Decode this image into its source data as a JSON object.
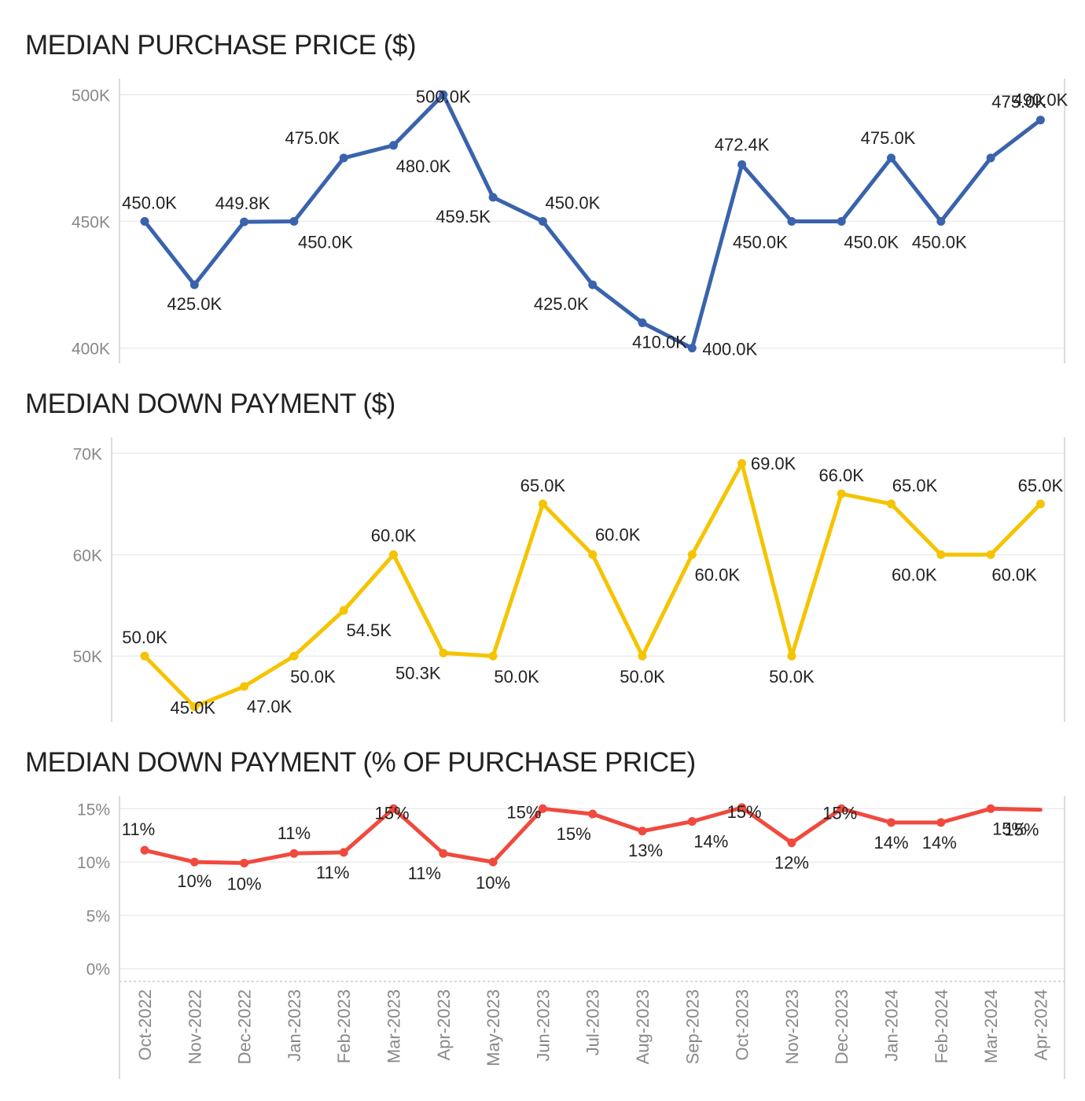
{
  "chart_data": [
    {
      "type": "line",
      "title": "MEDIAN PURCHASE PRICE ($)",
      "categories": [
        "Oct-2022",
        "Nov-2022",
        "Dec-2022",
        "Jan-2023",
        "Feb-2023",
        "Mar-2023",
        "Apr-2023",
        "May-2023",
        "Jun-2023",
        "Jul-2023",
        "Aug-2023",
        "Sep-2023",
        "Oct-2023",
        "Nov-2023",
        "Dec-2023",
        "Jan-2024",
        "Feb-2024",
        "Mar-2024",
        "Apr-2024"
      ],
      "values": [
        450.0,
        425.0,
        449.8,
        450.0,
        475.0,
        480.0,
        500.0,
        459.5,
        450.0,
        425.0,
        410.0,
        400.0,
        472.4,
        450.0,
        450.0,
        475.0,
        450.0,
        475.0,
        490.0
      ],
      "data_labels": [
        "450.0K",
        "425.0K",
        "449.8K",
        "450.0K",
        "475.0K",
        "480.0K",
        "500.0K",
        "459.5K",
        "450.0K",
        "425.0K",
        "410.0K",
        "400.0K",
        "472.4K",
        "450.0K",
        "450.0K",
        "475.0K",
        "450.0K",
        "475.0K",
        "490.0K"
      ],
      "yticks": [
        {
          "value": 400,
          "label": "400K"
        },
        {
          "value": 450,
          "label": "450K"
        },
        {
          "value": 500,
          "label": "500K"
        }
      ],
      "ylim": [
        394,
        506
      ],
      "grid": true,
      "color": "#3a63ad"
    },
    {
      "type": "line",
      "title": "MEDIAN DOWN PAYMENT ($)",
      "categories": [
        "Oct-2022",
        "Nov-2022",
        "Dec-2022",
        "Jan-2023",
        "Feb-2023",
        "Mar-2023",
        "Apr-2023",
        "May-2023",
        "Jun-2023",
        "Jul-2023",
        "Aug-2023",
        "Sep-2023",
        "Oct-2023",
        "Nov-2023",
        "Dec-2023",
        "Jan-2024",
        "Feb-2024",
        "Mar-2024",
        "Apr-2024"
      ],
      "values": [
        50.0,
        45.0,
        47.0,
        50.0,
        54.5,
        60.0,
        50.3,
        50.0,
        65.0,
        60.0,
        50.0,
        60.0,
        69.0,
        50.0,
        66.0,
        65.0,
        60.0,
        60.0,
        65.0
      ],
      "data_labels": [
        "50.0K",
        "45.0K",
        "47.0K",
        "50.0K",
        "54.5K",
        "60.0K",
        "50.3K",
        "50.0K",
        "65.0K",
        "60.0K",
        "50.0K",
        "60.0K",
        "69.0K",
        "50.0K",
        "66.0K",
        "65.0K",
        "60.0K",
        "60.0K",
        "65.0K"
      ],
      "yticks": [
        {
          "value": 50,
          "label": "50K"
        },
        {
          "value": 60,
          "label": "60K"
        },
        {
          "value": 70,
          "label": "70K"
        }
      ],
      "ylim": [
        43.5,
        71.5
      ],
      "grid": true,
      "color": "#f5c400"
    },
    {
      "type": "line",
      "title": "MEDIAN DOWN PAYMENT (% OF PURCHASE PRICE)",
      "categories": [
        "Oct-2022",
        "Nov-2022",
        "Dec-2022",
        "Jan-2023",
        "Feb-2023",
        "Mar-2023",
        "Apr-2023",
        "May-2023",
        "Jun-2023",
        "Jul-2023",
        "Aug-2023",
        "Sep-2023",
        "Oct-2023",
        "Nov-2023",
        "Dec-2023",
        "Jan-2024",
        "Feb-2024",
        "Mar-2024",
        "Apr-2024"
      ],
      "values": [
        11.1,
        10.0,
        9.9,
        10.8,
        10.9,
        15.0,
        10.8,
        10.0,
        15.0,
        14.5,
        12.9,
        13.8,
        15.1,
        11.8,
        15.0,
        13.7,
        13.7,
        15.0,
        14.9
      ],
      "data_labels": [
        "11%",
        "10%",
        "10%",
        "11%",
        "11%",
        "15%",
        "11%",
        "10%",
        "15%",
        "15%",
        "13%",
        "14%",
        "15%",
        "12%",
        "15%",
        "14%",
        "14%",
        "",
        "15%"
      ],
      "yticks": [
        {
          "value": 0,
          "label": "0%"
        },
        {
          "value": 5,
          "label": "5%"
        },
        {
          "value": 10,
          "label": "10%"
        },
        {
          "value": 15,
          "label": "15%"
        }
      ],
      "ylim": [
        -1.2,
        16.2
      ],
      "grid": true,
      "color": "#f04a3e"
    }
  ]
}
